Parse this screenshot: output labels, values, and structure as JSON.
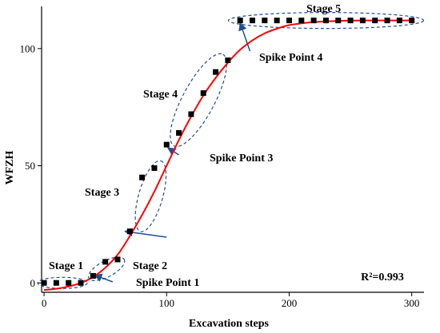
{
  "chart_data": {
    "type": "scatter",
    "xlabel": "Excavation steps",
    "ylabel": "WFZH",
    "xlim": [
      -2,
      310
    ],
    "ylim": [
      -4,
      118
    ],
    "x_ticks": [
      0,
      100,
      200,
      300
    ],
    "y_ticks": [
      0,
      50,
      100
    ],
    "x_tick_labels": [
      "0",
      "100",
      "200",
      "300"
    ],
    "y_tick_labels": [
      "0",
      "50",
      "100"
    ],
    "series": [
      {
        "marker": "square",
        "color": "#000000",
        "x": [
          0,
          10,
          20,
          30,
          40,
          50,
          60,
          70,
          80,
          90,
          100,
          110,
          120,
          130,
          140,
          150,
          160,
          170,
          180,
          190,
          200,
          210,
          220,
          230,
          240,
          250,
          260,
          270,
          280,
          290,
          300
        ],
        "y": [
          0,
          0,
          0,
          0,
          3,
          9,
          10,
          22,
          45,
          49,
          59,
          64,
          72,
          81,
          90,
          95,
          112,
          112,
          112,
          112,
          112,
          112,
          112,
          112,
          112,
          112,
          112,
          112,
          112,
          112,
          112
        ]
      }
    ],
    "fit_curve": {
      "color": "#ff0000",
      "x": [
        0,
        10,
        20,
        30,
        40,
        50,
        60,
        70,
        80,
        90,
        100,
        110,
        120,
        130,
        140,
        150,
        160,
        170,
        180,
        190,
        200,
        220,
        240,
        260,
        280,
        300
      ],
      "y": [
        -3,
        -2.5,
        -1.5,
        0,
        2.5,
        6.5,
        12,
        20,
        29,
        39,
        50,
        61,
        71,
        80,
        87.5,
        94,
        99.5,
        103.5,
        106.5,
        108.5,
        110,
        111.3,
        111.8,
        112,
        112,
        112
      ]
    },
    "annotations": {
      "color": "#1f4e99",
      "stages": [
        {
          "label": "Stage 1"
        },
        {
          "label": "Stage 2"
        },
        {
          "label": "Stage 3"
        },
        {
          "label": "Stage 4"
        },
        {
          "label": "Stage 5"
        }
      ],
      "spike_points": [
        {
          "label": "Spike Point 1"
        },
        {
          "label": "Spike Point 3"
        },
        {
          "label": "Spike Point 4"
        }
      ]
    },
    "r2_label": "R²=0.993"
  }
}
